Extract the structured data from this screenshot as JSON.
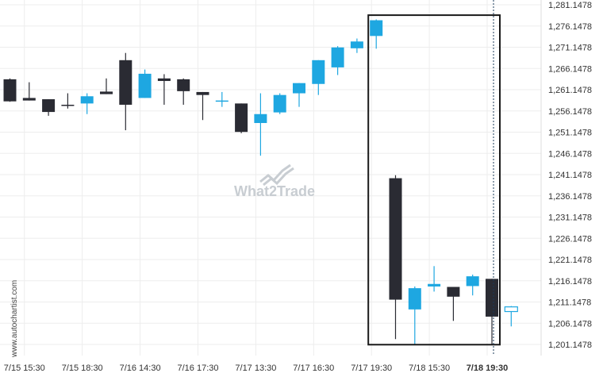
{
  "chart_data": {
    "type": "candlestick",
    "y_ticks": [
      "1,201.1478",
      "1,206.1478",
      "1,211.1478",
      "1,216.1478",
      "1,221.1478",
      "1,226.1478",
      "1,231.1478",
      "1,236.1478",
      "1,241.1478",
      "1,246.1478",
      "1,251.1478",
      "1,256.1478",
      "1,261.1478",
      "1,266.1478",
      "1,271.1478",
      "1,276.1478",
      "1,281.1478"
    ],
    "ylim": [
      1199.6,
      1282.5
    ],
    "x_ticks": [
      {
        "label": "7/15 15:30",
        "index": 1,
        "bold": false
      },
      {
        "label": "7/15 18:30",
        "index": 4,
        "bold": false
      },
      {
        "label": "7/16 14:30",
        "index": 7,
        "bold": false
      },
      {
        "label": "7/16 17:30",
        "index": 10,
        "bold": false
      },
      {
        "label": "7/17 13:30",
        "index": 13,
        "bold": false
      },
      {
        "label": "7/17 16:30",
        "index": 16,
        "bold": false
      },
      {
        "label": "7/17 19:30",
        "index": 19,
        "bold": false
      },
      {
        "label": "7/18 15:30",
        "index": 22,
        "bold": false
      },
      {
        "label": "7/18 19:30",
        "index": 25,
        "bold": true
      }
    ],
    "candles": [
      {
        "o": 1263.6,
        "h": 1263.8,
        "l": 1258.3,
        "c": 1258.4
      },
      {
        "o": 1259.2,
        "h": 1262.9,
        "l": 1258.6,
        "c": 1258.6
      },
      {
        "o": 1258.9,
        "h": 1258.9,
        "l": 1255.0,
        "c": 1255.9
      },
      {
        "o": 1257.6,
        "h": 1260.3,
        "l": 1256.7,
        "c": 1257.4
      },
      {
        "o": 1257.9,
        "h": 1260.3,
        "l": 1255.4,
        "c": 1259.6
      },
      {
        "o": 1260.7,
        "h": 1263.8,
        "l": 1260.1,
        "c": 1260.1
      },
      {
        "o": 1268.1,
        "h": 1269.8,
        "l": 1251.6,
        "c": 1257.6
      },
      {
        "o": 1259.2,
        "h": 1265.9,
        "l": 1259.2,
        "c": 1264.9
      },
      {
        "o": 1263.8,
        "h": 1264.8,
        "l": 1257.6,
        "c": 1263.2
      },
      {
        "o": 1263.6,
        "h": 1263.8,
        "l": 1257.6,
        "c": 1260.8
      },
      {
        "o": 1260.6,
        "h": 1260.6,
        "l": 1254.0,
        "c": 1259.9
      },
      {
        "o": 1258.6,
        "h": 1260.6,
        "l": 1257.1,
        "c": 1258.6
      },
      {
        "o": 1257.9,
        "h": 1257.9,
        "l": 1250.9,
        "c": 1251.2
      },
      {
        "o": 1253.3,
        "h": 1260.3,
        "l": 1245.6,
        "c": 1255.4
      },
      {
        "o": 1255.8,
        "h": 1260.3,
        "l": 1255.4,
        "c": 1259.9
      },
      {
        "o": 1260.3,
        "h": 1262.7,
        "l": 1257.1,
        "c": 1262.7
      },
      {
        "o": 1262.5,
        "h": 1268.1,
        "l": 1259.9,
        "c": 1268.1
      },
      {
        "o": 1266.4,
        "h": 1271.4,
        "l": 1264.6,
        "c": 1271.1
      },
      {
        "o": 1270.9,
        "h": 1273.2,
        "l": 1269.8,
        "c": 1272.5
      },
      {
        "o": 1273.8,
        "h": 1277.7,
        "l": 1270.8,
        "c": 1277.5
      },
      {
        "o": 1240.3,
        "h": 1241.0,
        "l": 1202.4,
        "c": 1211.7
      },
      {
        "o": 1209.4,
        "h": 1214.8,
        "l": 1201.1,
        "c": 1214.4
      },
      {
        "o": 1214.8,
        "h": 1219.6,
        "l": 1213.6,
        "c": 1215.4
      },
      {
        "o": 1214.7,
        "h": 1214.7,
        "l": 1206.7,
        "c": 1212.4
      },
      {
        "o": 1214.9,
        "h": 1217.6,
        "l": 1212.7,
        "c": 1217.2
      },
      {
        "o": 1216.6,
        "h": 1216.6,
        "l": 1201.1,
        "c": 1207.7
      },
      {
        "o": 1208.9,
        "h": 1210.2,
        "l": 1205.4,
        "c": 1210.0
      }
    ],
    "highlight": {
      "from_index": 19,
      "to_index": 25,
      "ymin": 1201.1,
      "ymax": 1278.7
    },
    "marker_index": 25,
    "colors": {
      "up": "#1ea7e1",
      "down": "#2a2b33",
      "grid": "#ededed",
      "box": "#1a1a1a",
      "marker": "#1a3a5a",
      "watermark": "#c8cdd2"
    }
  },
  "watermark": "What2Trade",
  "side_label": "www.autochartist.com"
}
